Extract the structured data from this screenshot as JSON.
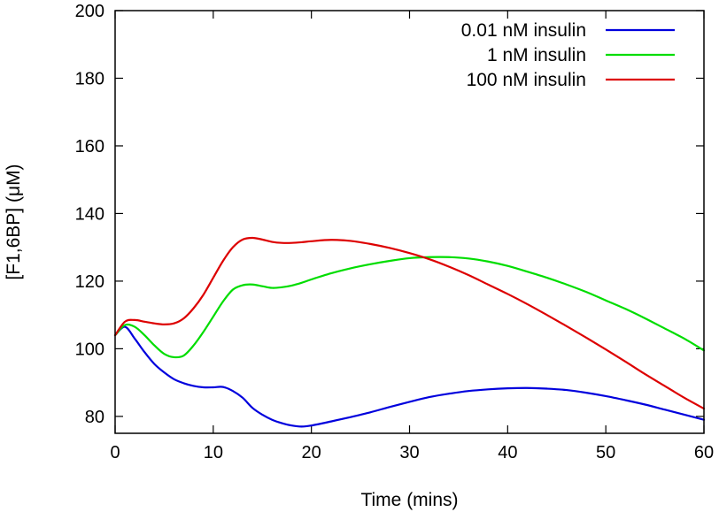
{
  "chart_data": {
    "type": "line",
    "xlabel": "Time (mins)",
    "ylabel": "[F1,6BP] (μM)",
    "xlim": [
      0,
      60
    ],
    "ylim": [
      75,
      200
    ],
    "xticks": [
      0,
      10,
      20,
      30,
      40,
      50,
      60
    ],
    "yticks": [
      80,
      100,
      120,
      140,
      160,
      180,
      200
    ],
    "grid": false,
    "legend_position": "top-right",
    "series": [
      {
        "name": "0.01 nM insulin",
        "color": "#0000dd",
        "x": [
          0,
          1,
          2,
          3,
          4,
          5,
          6,
          7,
          8,
          9,
          10,
          11,
          12,
          13,
          14,
          15,
          16,
          17,
          18,
          19,
          20,
          22,
          24,
          26,
          28,
          30,
          32,
          34,
          36,
          38,
          40,
          42,
          44,
          46,
          48,
          50,
          52,
          54,
          56,
          58,
          60
        ],
        "y": [
          104,
          106.5,
          103,
          99,
          95.5,
          93,
          91,
          89.8,
          89,
          88.6,
          88.6,
          88.7,
          87.5,
          85.5,
          82.5,
          80.5,
          79,
          78,
          77.3,
          77,
          77.3,
          78.5,
          79.8,
          81.2,
          82.8,
          84.3,
          85.7,
          86.7,
          87.5,
          88,
          88.3,
          88.4,
          88.2,
          87.8,
          87,
          86,
          84.8,
          83.5,
          82,
          80.5,
          79
        ]
      },
      {
        "name": "1 nM insulin",
        "color": "#00dd00",
        "x": [
          0,
          1,
          2,
          3,
          4,
          5,
          6,
          7,
          8,
          9,
          10,
          11,
          12,
          13,
          14,
          15,
          16,
          17,
          18,
          19,
          20,
          22,
          24,
          26,
          28,
          30,
          32,
          34,
          36,
          38,
          40,
          42,
          44,
          46,
          48,
          50,
          52,
          54,
          56,
          58,
          60
        ],
        "y": [
          104,
          107,
          106.5,
          104,
          101,
          98.5,
          97.5,
          98,
          101,
          105,
          109.5,
          114,
          117.5,
          118.8,
          119,
          118.5,
          118,
          118.2,
          118.7,
          119.5,
          120.5,
          122.3,
          123.8,
          125,
          126,
          126.8,
          127.1,
          127.1,
          126.7,
          125.8,
          124.5,
          122.8,
          121,
          119,
          116.8,
          114.3,
          111.8,
          109,
          106,
          103,
          99.5
        ]
      },
      {
        "name": "100 nM insulin",
        "color": "#dd0000",
        "x": [
          0,
          1,
          2,
          3,
          4,
          5,
          6,
          7,
          8,
          9,
          10,
          11,
          12,
          13,
          14,
          15,
          16,
          17,
          18,
          19,
          20,
          22,
          24,
          26,
          28,
          30,
          32,
          34,
          36,
          38,
          40,
          42,
          44,
          46,
          48,
          50,
          52,
          54,
          56,
          58,
          60
        ],
        "y": [
          104,
          108,
          108.5,
          108,
          107.5,
          107.2,
          107.5,
          109,
          112,
          116,
          121,
          126,
          130,
          132.3,
          132.8,
          132.3,
          131.6,
          131.3,
          131.3,
          131.5,
          131.8,
          132.2,
          131.9,
          131,
          129.8,
          128.3,
          126.5,
          124.3,
          121.8,
          119,
          116.2,
          113.2,
          110,
          106.7,
          103.3,
          99.8,
          96.2,
          92.5,
          89,
          85.5,
          82.3
        ]
      }
    ]
  }
}
